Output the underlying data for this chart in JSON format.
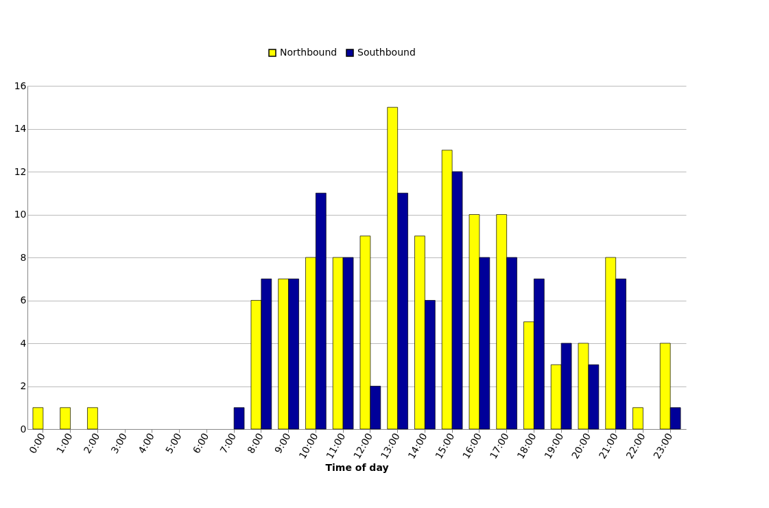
{
  "chart_data": {
    "type": "bar",
    "xlabel": "Time of day",
    "categories": [
      "0:00",
      "1:00",
      "2:00",
      "3:00",
      "4:00",
      "5:00",
      "6:00",
      "7:00",
      "8:00",
      "9:00",
      "10:00",
      "11:00",
      "12:00",
      "13:00",
      "14:00",
      "15:00",
      "16:00",
      "17:00",
      "18:00",
      "19:00",
      "20:00",
      "21:00",
      "22:00",
      "23:00"
    ],
    "series": [
      {
        "name": "Northbound",
        "color": "#ffff00",
        "values": [
          1,
          1,
          1,
          0,
          0,
          0,
          0,
          0,
          6,
          7,
          8,
          8,
          9,
          15,
          9,
          13,
          10,
          10,
          5,
          3,
          4,
          8,
          1,
          4
        ]
      },
      {
        "name": "Southbound",
        "color": "#000099",
        "values": [
          0,
          0,
          0,
          0,
          0,
          0,
          0,
          1,
          7,
          7,
          11,
          8,
          2,
          11,
          6,
          12,
          8,
          8,
          7,
          4,
          3,
          7,
          0,
          1
        ]
      }
    ],
    "ylim": [
      0,
      16
    ],
    "yticks": [
      0,
      2,
      4,
      6,
      8,
      10,
      12,
      14,
      16
    ],
    "grid": "y",
    "legend": "top"
  }
}
